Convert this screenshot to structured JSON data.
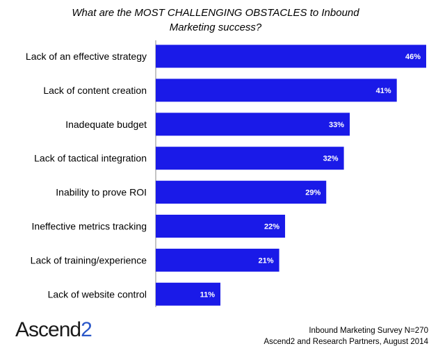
{
  "chart_data": {
    "type": "bar",
    "orientation": "horizontal",
    "title": "What are the MOST CHALLENGING OBSTACLES to Inbound Marketing success?",
    "categories": [
      "Lack of an effective strategy",
      "Lack of content creation",
      "Inadequate budget",
      "Lack of tactical integration",
      "Inability to prove ROI",
      "Ineffective metrics tracking",
      "Lack of training/experience",
      "Lack of website control"
    ],
    "values": [
      46,
      41,
      33,
      32,
      29,
      22,
      21,
      11
    ],
    "value_labels": [
      "46%",
      "41%",
      "33%",
      "32%",
      "29%",
      "22%",
      "21%",
      "11%"
    ],
    "xlim": [
      0,
      46
    ],
    "grid": false,
    "legend": "none",
    "bar_color": "#1a1ae8"
  },
  "brand": {
    "name": "Ascend",
    "suffix": "2"
  },
  "footer": {
    "line1": "Inbound Marketing Survey N=270",
    "line2": "Ascend2 and Research Partners, August 2014"
  }
}
